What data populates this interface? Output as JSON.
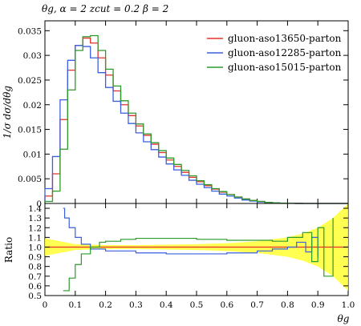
{
  "chart_data": [
    {
      "type": "line",
      "title": "θg, α = 2 zcut = 0.2 β = 2",
      "xlabel": "",
      "ylabel": "1/σ dσ/dθg",
      "xlim": [
        0,
        1
      ],
      "ylim": [
        0,
        0.037
      ],
      "y_ticks": [
        "0",
        "0.005",
        "0.01",
        "0.015",
        "0.02",
        "0.025",
        "0.03",
        "0.035"
      ],
      "y_tick_values": [
        0,
        0.005,
        0.01,
        0.015,
        0.02,
        0.025,
        0.03,
        0.035
      ],
      "legend_position": "top-right",
      "bin_edges": [
        0,
        0.025,
        0.05,
        0.075,
        0.1,
        0.125,
        0.15,
        0.175,
        0.2,
        0.225,
        0.25,
        0.275,
        0.3,
        0.325,
        0.35,
        0.375,
        0.4,
        0.425,
        0.45,
        0.475,
        0.5,
        0.525,
        0.55,
        0.575,
        0.6,
        0.625,
        0.65,
        0.675,
        0.7,
        0.725,
        0.75,
        0.775,
        0.8,
        0.825,
        0.85,
        0.875,
        0.9,
        0.925,
        0.95,
        0.975,
        1.0
      ],
      "series": [
        {
          "name": "gluon-aso13650-parton",
          "color": "#e8302a",
          "values": [
            0.0015,
            0.006,
            0.017,
            0.027,
            0.032,
            0.0335,
            0.0325,
            0.0295,
            0.026,
            0.0228,
            0.02,
            0.0178,
            0.0157,
            0.0138,
            0.012,
            0.0103,
            0.0088,
            0.0075,
            0.0063,
            0.0053,
            0.0044,
            0.0036,
            0.0029,
            0.0023,
            0.0018,
            0.0013,
            0.0009,
            0.0006,
            0.0004,
            0.0002,
            0.0001,
            5e-05,
            2e-05,
            1e-05,
            0,
            0,
            0,
            0,
            0,
            0
          ]
        },
        {
          "name": "gluon-aso12285-parton",
          "color": "#3a5fe0",
          "values": [
            0.003,
            0.0095,
            0.021,
            0.029,
            0.032,
            0.0318,
            0.0295,
            0.0265,
            0.0235,
            0.0207,
            0.0183,
            0.0162,
            0.0143,
            0.0125,
            0.0109,
            0.0094,
            0.008,
            0.0068,
            0.0057,
            0.0047,
            0.0039,
            0.0032,
            0.0025,
            0.0019,
            0.0015,
            0.0011,
            0.0007,
            0.0005,
            0.0003,
            0.0002,
            0.0001,
            4e-05,
            2e-05,
            1e-05,
            0,
            0,
            0,
            0,
            0,
            0
          ]
        },
        {
          "name": "gluon-aso15015-parton",
          "color": "#2c9a2c",
          "values": [
            0.0004,
            0.0025,
            0.011,
            0.023,
            0.031,
            0.0338,
            0.034,
            0.031,
            0.0272,
            0.0238,
            0.0208,
            0.0183,
            0.0161,
            0.0141,
            0.0123,
            0.0107,
            0.0092,
            0.0079,
            0.0067,
            0.0056,
            0.0046,
            0.0038,
            0.003,
            0.0024,
            0.0018,
            0.0013,
            0.0009,
            0.0006,
            0.0004,
            0.0002,
            0.0001,
            5e-05,
            2e-05,
            1e-05,
            0,
            0,
            0,
            0,
            0,
            0
          ]
        }
      ]
    },
    {
      "type": "line",
      "title": "",
      "xlabel": "θg",
      "ylabel": "Ratio",
      "xlim": [
        0,
        1
      ],
      "ylim": [
        0.5,
        1.45
      ],
      "x_ticks": [
        "0",
        "0.1",
        "0.2",
        "0.3",
        "0.4",
        "0.5",
        "0.6",
        "0.7",
        "0.8",
        "0.9",
        "1.0"
      ],
      "x_tick_values": [
        0,
        0.1,
        0.2,
        0.3,
        0.4,
        0.5,
        0.6,
        0.7,
        0.8,
        0.9,
        1.0
      ],
      "y_ticks": [
        "0.5",
        "0.6",
        "0.7",
        "0.8",
        "0.9",
        "1.0",
        "1.1",
        "1.2",
        "1.3",
        "1.4"
      ],
      "y_tick_values": [
        0.5,
        0.6,
        0.7,
        0.8,
        0.9,
        1.0,
        1.1,
        1.2,
        1.3,
        1.4
      ],
      "band_color": "#ffff33",
      "band": {
        "x": [
          0,
          0.1,
          0.2,
          0.3,
          0.4,
          0.5,
          0.6,
          0.7,
          0.8,
          0.85,
          0.9,
          0.95,
          1.0
        ],
        "half_width": [
          0.09,
          0.03,
          0.02,
          0.02,
          0.025,
          0.03,
          0.04,
          0.06,
          0.1,
          0.14,
          0.2,
          0.3,
          0.45
        ]
      },
      "series": [
        {
          "name": "gluon-aso13650-parton",
          "color": "#e8302a",
          "x": [
            0,
            1
          ],
          "values": [
            1.0,
            1.0
          ]
        },
        {
          "name": "gluon-aso12285-parton",
          "color": "#3a5fe0",
          "x": [
            0.06,
            0.065,
            0.08,
            0.1,
            0.12,
            0.15,
            0.2,
            0.3,
            0.4,
            0.5,
            0.6,
            0.7,
            0.75,
            0.8,
            0.83,
            0.86,
            0.88,
            0.9
          ],
          "values": [
            1.4,
            1.3,
            1.2,
            1.1,
            1.03,
            0.98,
            0.96,
            0.94,
            0.93,
            0.93,
            0.94,
            0.96,
            0.98,
            1.0,
            1.05,
            0.95,
            1.1,
            0.9
          ]
        },
        {
          "name": "gluon-aso15015-parton",
          "color": "#2c9a2c",
          "x": [
            0.06,
            0.08,
            0.1,
            0.12,
            0.15,
            0.18,
            0.2,
            0.25,
            0.3,
            0.4,
            0.5,
            0.6,
            0.7,
            0.75,
            0.8,
            0.85,
            0.88,
            0.9,
            0.92,
            0.95
          ],
          "values": [
            0.55,
            0.68,
            0.82,
            0.93,
            1.0,
            1.05,
            1.06,
            1.08,
            1.09,
            1.09,
            1.08,
            1.07,
            1.07,
            1.06,
            1.1,
            1.15,
            0.85,
            1.2,
            0.7,
            1.3
          ]
        }
      ]
    }
  ]
}
